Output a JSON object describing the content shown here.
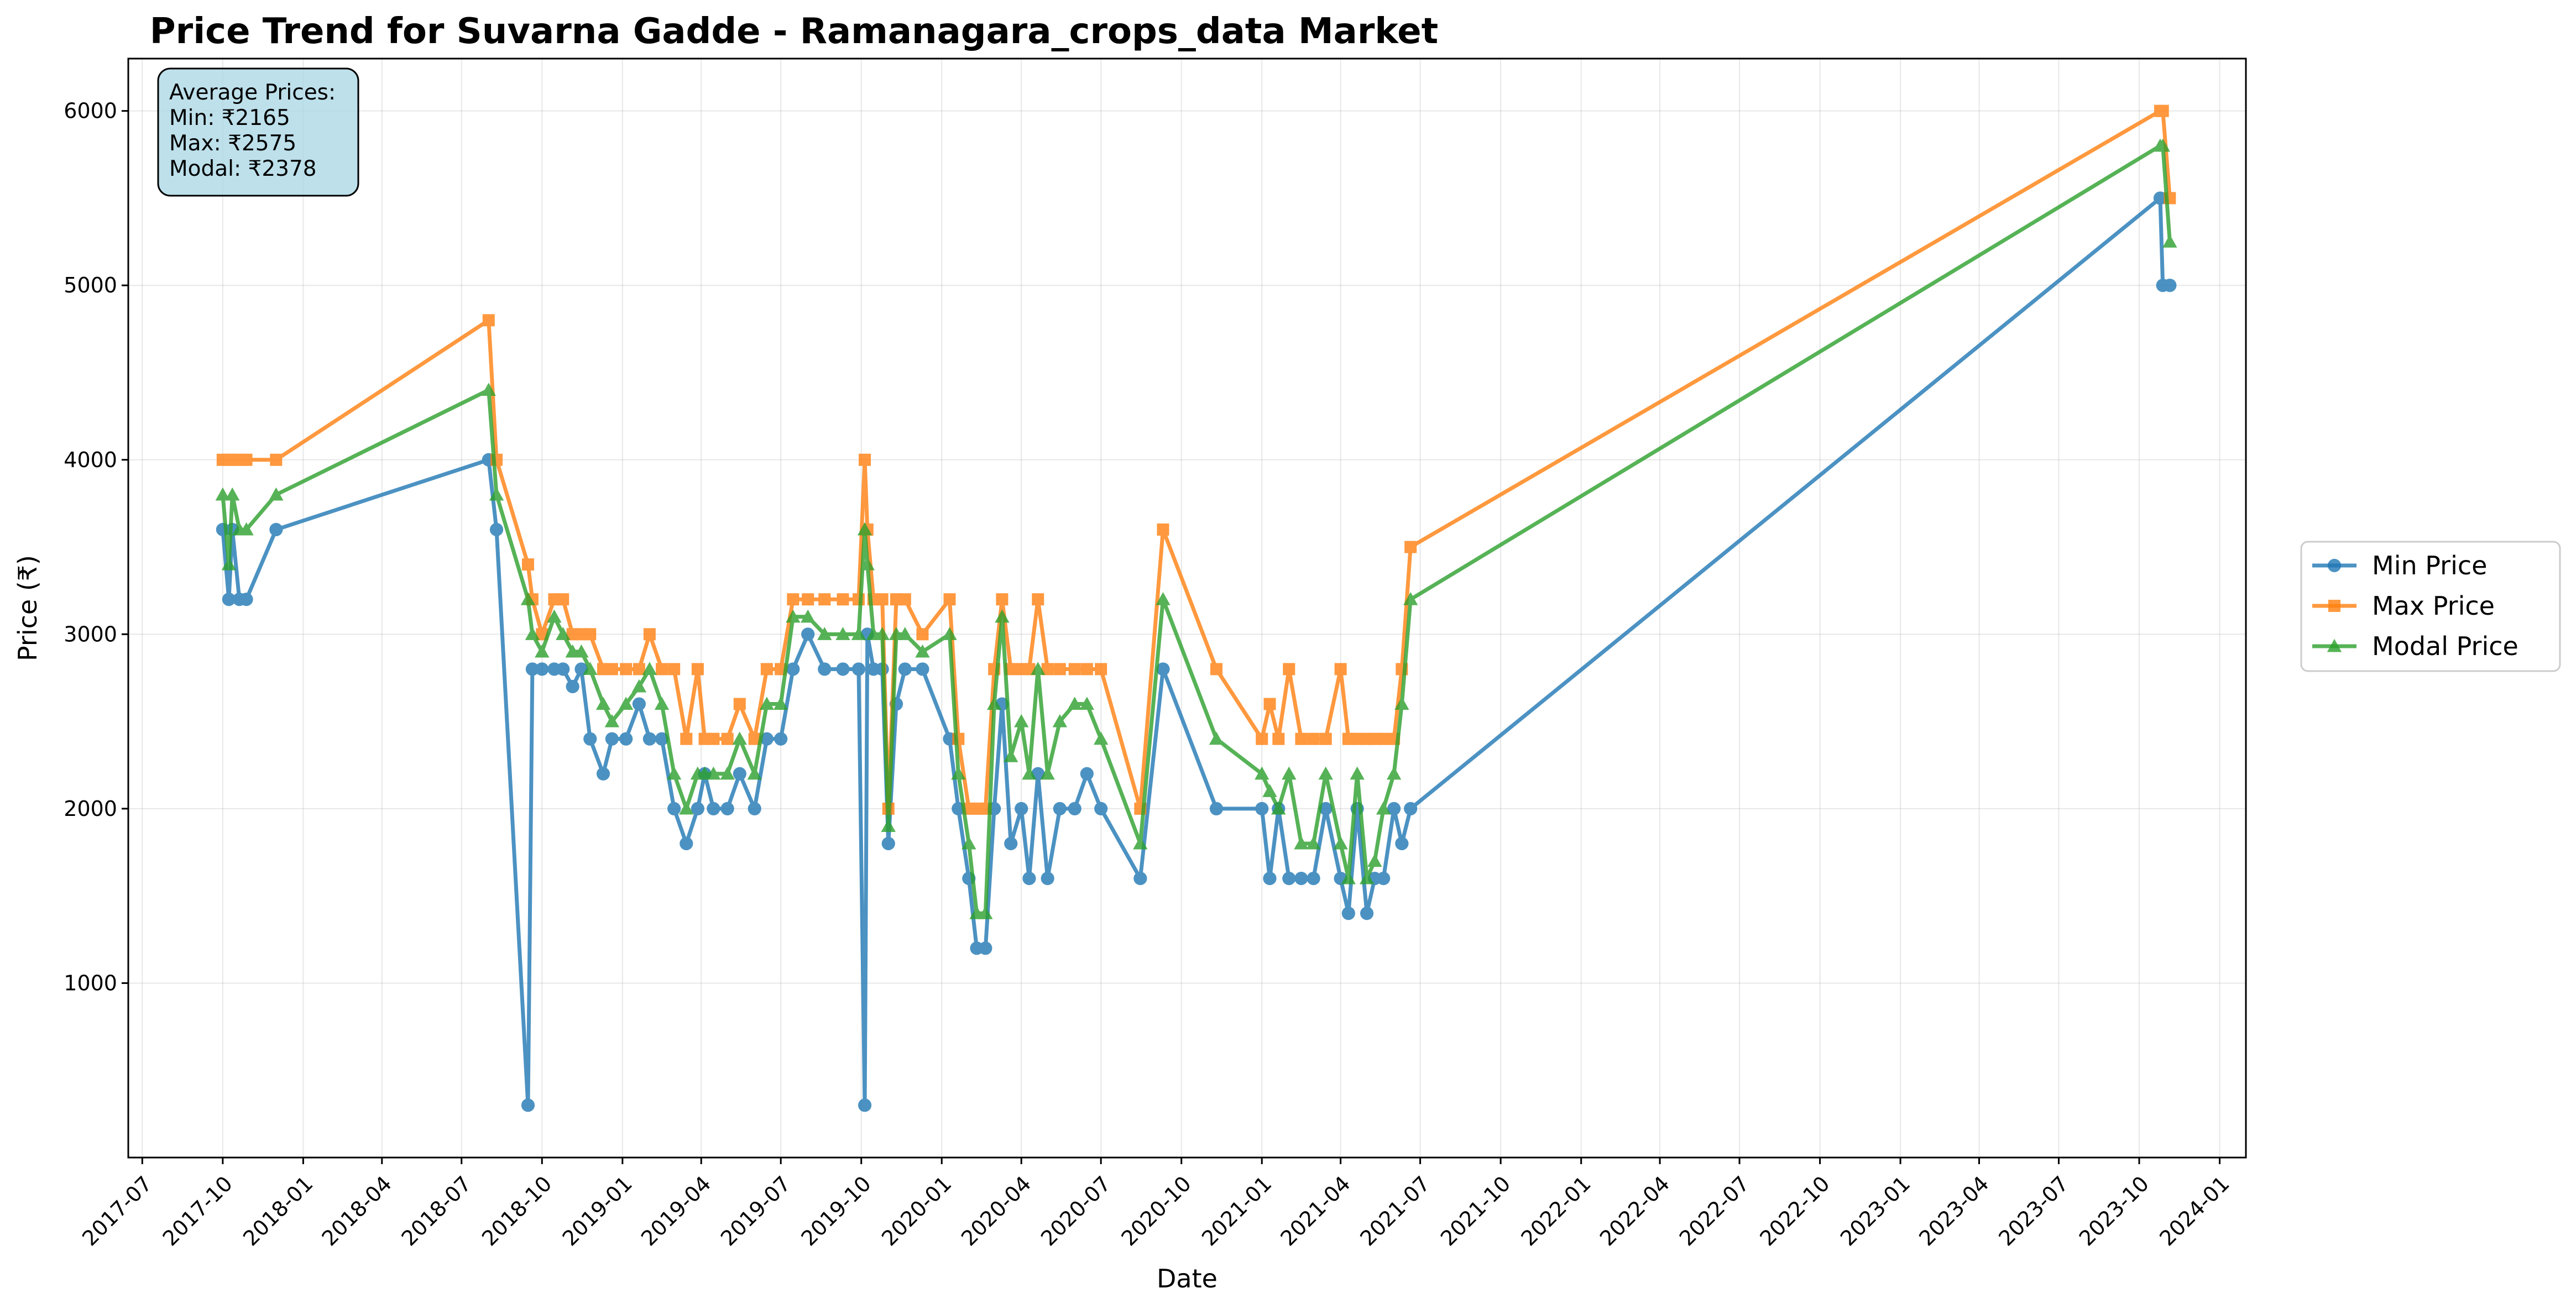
{
  "chart_data": {
    "type": "line",
    "title": "Price Trend for Suvarna Gadde - Ramanagara_crops_data Market",
    "xlabel": "Date",
    "ylabel": "Price (₹)",
    "x_range": [
      "2017-06-15",
      "2024-01-31"
    ],
    "ylim": [
      0,
      6300
    ],
    "x_ticks": [
      "2017-07",
      "2017-10",
      "2018-01",
      "2018-04",
      "2018-07",
      "2018-10",
      "2019-01",
      "2019-04",
      "2019-07",
      "2019-10",
      "2020-01",
      "2020-04",
      "2020-07",
      "2020-10",
      "2021-01",
      "2021-04",
      "2021-07",
      "2021-10",
      "2022-01",
      "2022-04",
      "2022-07",
      "2022-10",
      "2023-01",
      "2023-04",
      "2023-07",
      "2023-10",
      "2024-01"
    ],
    "y_ticks": [
      1000,
      2000,
      3000,
      4000,
      5000,
      6000
    ],
    "grid": true,
    "legend_position": "right",
    "stats_box": {
      "lines": [
        "Average Prices:",
        "Min: ₹2165",
        "Max: ₹2575",
        "Modal: ₹2378"
      ]
    },
    "series": [
      {
        "name": "Min Price",
        "color": "#1f77b4",
        "marker": "circle",
        "x": [
          "2017-10-01",
          "2017-10-08",
          "2017-10-12",
          "2017-10-20",
          "2017-10-28",
          "2017-12-01",
          "2018-08-01",
          "2018-08-10",
          "2018-09-15",
          "2018-09-20",
          "2018-10-01",
          "2018-10-15",
          "2018-10-25",
          "2018-11-05",
          "2018-11-15",
          "2018-11-25",
          "2018-12-10",
          "2018-12-20",
          "2019-01-05",
          "2019-01-20",
          "2019-02-01",
          "2019-02-15",
          "2019-03-01",
          "2019-03-15",
          "2019-03-28",
          "2019-04-05",
          "2019-04-15",
          "2019-05-01",
          "2019-05-15",
          "2019-06-01",
          "2019-06-15",
          "2019-07-01",
          "2019-07-15",
          "2019-08-01",
          "2019-08-20",
          "2019-09-10",
          "2019-09-28",
          "2019-10-05",
          "2019-10-08",
          "2019-10-15",
          "2019-10-25",
          "2019-11-01",
          "2019-11-10",
          "2019-11-20",
          "2019-12-10",
          "2020-01-10",
          "2020-01-20",
          "2020-02-01",
          "2020-02-10",
          "2020-02-20",
          "2020-03-01",
          "2020-03-10",
          "2020-03-20",
          "2020-04-01",
          "2020-04-10",
          "2020-04-20",
          "2020-05-01",
          "2020-05-15",
          "2020-06-01",
          "2020-06-15",
          "2020-07-01",
          "2020-08-15",
          "2020-09-10",
          "2020-11-10",
          "2021-01-01",
          "2021-01-10",
          "2021-01-20",
          "2021-02-01",
          "2021-02-15",
          "2021-03-01",
          "2021-03-15",
          "2021-04-01",
          "2021-04-10",
          "2021-04-20",
          "2021-05-01",
          "2021-05-10",
          "2021-05-20",
          "2021-06-01",
          "2021-06-10",
          "2021-06-20",
          "2023-10-25",
          "2023-10-28",
          "2023-11-05"
        ],
        "values": [
          3600,
          3200,
          3600,
          3200,
          3200,
          3600,
          4000,
          3600,
          300,
          2800,
          2800,
          2800,
          2800,
          2700,
          2800,
          2400,
          2200,
          2400,
          2400,
          2600,
          2400,
          2400,
          2000,
          1800,
          2000,
          2200,
          2000,
          2000,
          2200,
          2000,
          2400,
          2400,
          2800,
          3000,
          2800,
          2800,
          2800,
          300,
          3000,
          2800,
          2800,
          1800,
          2600,
          2800,
          2800,
          2400,
          2000,
          1600,
          1200,
          1200,
          2000,
          2600,
          1800,
          2000,
          1600,
          2200,
          1600,
          2000,
          2000,
          2200,
          2000,
          1600,
          2800,
          2000,
          2000,
          1600,
          2000,
          1600,
          1600,
          1600,
          2000,
          1600,
          1400,
          2000,
          1400,
          1600,
          1600,
          2000,
          1800,
          2000,
          5500,
          5000,
          5000
        ]
      },
      {
        "name": "Max Price",
        "color": "#ff7f0e",
        "marker": "square",
        "x": [
          "2017-10-01",
          "2017-10-08",
          "2017-10-12",
          "2017-10-20",
          "2017-10-28",
          "2017-12-01",
          "2018-08-01",
          "2018-08-10",
          "2018-09-15",
          "2018-09-20",
          "2018-10-01",
          "2018-10-15",
          "2018-10-25",
          "2018-11-05",
          "2018-11-15",
          "2018-11-25",
          "2018-12-10",
          "2018-12-20",
          "2019-01-05",
          "2019-01-20",
          "2019-02-01",
          "2019-02-15",
          "2019-03-01",
          "2019-03-15",
          "2019-03-28",
          "2019-04-05",
          "2019-04-15",
          "2019-05-01",
          "2019-05-15",
          "2019-06-01",
          "2019-06-15",
          "2019-07-01",
          "2019-07-15",
          "2019-08-01",
          "2019-08-20",
          "2019-09-10",
          "2019-09-28",
          "2019-10-05",
          "2019-10-08",
          "2019-10-15",
          "2019-10-25",
          "2019-11-01",
          "2019-11-10",
          "2019-11-20",
          "2019-12-10",
          "2020-01-10",
          "2020-01-20",
          "2020-02-01",
          "2020-02-10",
          "2020-02-20",
          "2020-03-01",
          "2020-03-10",
          "2020-03-20",
          "2020-04-01",
          "2020-04-10",
          "2020-04-20",
          "2020-05-01",
          "2020-05-15",
          "2020-06-01",
          "2020-06-15",
          "2020-07-01",
          "2020-08-15",
          "2020-09-10",
          "2020-11-10",
          "2021-01-01",
          "2021-01-10",
          "2021-01-20",
          "2021-02-01",
          "2021-02-15",
          "2021-03-01",
          "2021-03-15",
          "2021-04-01",
          "2021-04-10",
          "2021-04-20",
          "2021-05-01",
          "2021-05-10",
          "2021-05-20",
          "2021-06-01",
          "2021-06-10",
          "2021-06-20",
          "2023-10-25",
          "2023-10-28",
          "2023-11-05"
        ],
        "values": [
          4000,
          4000,
          4000,
          4000,
          4000,
          4000,
          4800,
          4000,
          3400,
          3200,
          3000,
          3200,
          3200,
          3000,
          3000,
          3000,
          2800,
          2800,
          2800,
          2800,
          3000,
          2800,
          2800,
          2400,
          2800,
          2400,
          2400,
          2400,
          2600,
          2400,
          2800,
          2800,
          3200,
          3200,
          3200,
          3200,
          3200,
          4000,
          3600,
          3200,
          3200,
          2000,
          3200,
          3200,
          3000,
          3200,
          2400,
          2000,
          2000,
          2000,
          2800,
          3200,
          2800,
          2800,
          2800,
          3200,
          2800,
          2800,
          2800,
          2800,
          2800,
          2000,
          3600,
          2800,
          2400,
          2600,
          2400,
          2800,
          2400,
          2400,
          2400,
          2800,
          2400,
          2400,
          2400,
          2400,
          2400,
          2400,
          2800,
          3500,
          6000,
          6000,
          5500
        ]
      },
      {
        "name": "Modal Price",
        "color": "#2ca02c",
        "marker": "triangle",
        "x": [
          "2017-10-01",
          "2017-10-08",
          "2017-10-12",
          "2017-10-20",
          "2017-10-28",
          "2017-12-01",
          "2018-08-01",
          "2018-08-10",
          "2018-09-15",
          "2018-09-20",
          "2018-10-01",
          "2018-10-15",
          "2018-10-25",
          "2018-11-05",
          "2018-11-15",
          "2018-11-25",
          "2018-12-10",
          "2018-12-20",
          "2019-01-05",
          "2019-01-20",
          "2019-02-01",
          "2019-02-15",
          "2019-03-01",
          "2019-03-15",
          "2019-03-28",
          "2019-04-05",
          "2019-04-15",
          "2019-05-01",
          "2019-05-15",
          "2019-06-01",
          "2019-06-15",
          "2019-07-01",
          "2019-07-15",
          "2019-08-01",
          "2019-08-20",
          "2019-09-10",
          "2019-09-28",
          "2019-10-05",
          "2019-10-08",
          "2019-10-15",
          "2019-10-25",
          "2019-11-01",
          "2019-11-10",
          "2019-11-20",
          "2019-12-10",
          "2020-01-10",
          "2020-01-20",
          "2020-02-01",
          "2020-02-10",
          "2020-02-20",
          "2020-03-01",
          "2020-03-10",
          "2020-03-20",
          "2020-04-01",
          "2020-04-10",
          "2020-04-20",
          "2020-05-01",
          "2020-05-15",
          "2020-06-01",
          "2020-06-15",
          "2020-07-01",
          "2020-08-15",
          "2020-09-10",
          "2020-11-10",
          "2021-01-01",
          "2021-01-10",
          "2021-01-20",
          "2021-02-01",
          "2021-02-15",
          "2021-03-01",
          "2021-03-15",
          "2021-04-01",
          "2021-04-10",
          "2021-04-20",
          "2021-05-01",
          "2021-05-10",
          "2021-05-20",
          "2021-06-01",
          "2021-06-10",
          "2021-06-20",
          "2023-10-25",
          "2023-10-28",
          "2023-11-05"
        ],
        "values": [
          3800,
          3400,
          3800,
          3600,
          3600,
          3800,
          4400,
          3800,
          3200,
          3000,
          2900,
          3100,
          3000,
          2900,
          2900,
          2800,
          2600,
          2500,
          2600,
          2700,
          2800,
          2600,
          2200,
          2000,
          2200,
          2200,
          2200,
          2200,
          2400,
          2200,
          2600,
          2600,
          3100,
          3100,
          3000,
          3000,
          3000,
          3600,
          3400,
          3000,
          3000,
          1900,
          3000,
          3000,
          2900,
          3000,
          2200,
          1800,
          1400,
          1400,
          2600,
          3100,
          2300,
          2500,
          2200,
          2800,
          2200,
          2500,
          2600,
          2600,
          2400,
          1800,
          3200,
          2400,
          2200,
          2100,
          2000,
          2200,
          1800,
          1800,
          2200,
          1800,
          1600,
          2200,
          1600,
          1700,
          2000,
          2200,
          2600,
          3200,
          5800,
          5800,
          5250
        ]
      }
    ]
  }
}
